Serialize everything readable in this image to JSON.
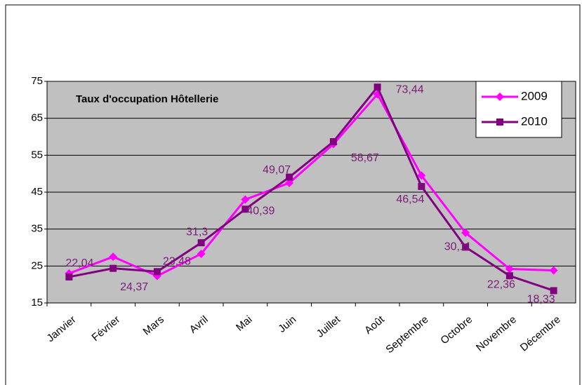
{
  "chart_data": {
    "type": "line",
    "title": "Taux d'occupation Hôtellerie",
    "categories": [
      "Janvier",
      "Février",
      "Mars",
      "Avril",
      "Mai",
      "Juin",
      "Juillet",
      "Août",
      "Septembre",
      "Octobre",
      "Novembre",
      "Décembre"
    ],
    "series": [
      {
        "name": "2009",
        "color": "#ff00ff",
        "marker": "diamond",
        "values": [
          23,
          27.5,
          22.3,
          28.3,
          43,
          47.5,
          58,
          71.5,
          49.5,
          34,
          24.2,
          23.8
        ]
      },
      {
        "name": "2010",
        "color": "#800080",
        "marker": "square",
        "values": [
          22.04,
          24.37,
          23.48,
          31.3,
          40.39,
          49.07,
          58.67,
          73.44,
          46.54,
          30.11,
          22.36,
          18.33
        ],
        "value_labels": [
          "22,04",
          "24,37",
          "23,48",
          "31,3",
          "40,39",
          "49,07",
          "58,67",
          "73,44",
          "46,54",
          "30,11",
          "22,36",
          "18,33"
        ]
      }
    ],
    "ylim": [
      15,
      75
    ],
    "yticks": [
      15,
      25,
      35,
      45,
      55,
      65,
      75
    ],
    "grid": true,
    "legend": "top-right"
  }
}
